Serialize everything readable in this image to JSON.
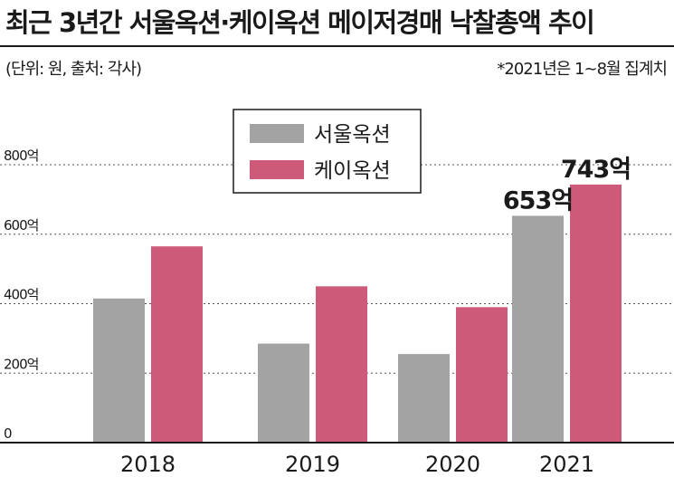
{
  "header": {
    "title": "최근 3년간 서울옥션·케이옥션 메이저경매 낙찰총액 추이",
    "subtitle": "(단위: 원, 출처: 각사)",
    "note": "*2021년은 1~8월 집계치"
  },
  "colors": {
    "seoul": "#a3a3a3",
    "kauction": "#cc5a78",
    "axis": "#1a1a1a",
    "grid": "#555555"
  },
  "chart_data": {
    "type": "bar",
    "title": "최근 3년간 서울옥션·케이옥션 메이저경매 낙찰총액 추이",
    "categories": [
      "2018",
      "2019",
      "2020",
      "2021"
    ],
    "series": [
      {
        "name": "서울옥션",
        "values": [
          415,
          285,
          255,
          653
        ]
      },
      {
        "name": "케이옥션",
        "values": [
          565,
          450,
          390,
          743
        ]
      }
    ],
    "y_ticks": [
      {
        "value": 0,
        "label": "0"
      },
      {
        "value": 200,
        "label": "200억"
      },
      {
        "value": 400,
        "label": "400억"
      },
      {
        "value": 600,
        "label": "600억"
      },
      {
        "value": 800,
        "label": "800억"
      }
    ],
    "ylim": [
      0,
      800
    ],
    "grid": true,
    "legend": "top-center",
    "data_labels": [
      {
        "series": 0,
        "category": 3,
        "text": "653억"
      },
      {
        "series": 1,
        "category": 3,
        "text": "743억"
      }
    ]
  }
}
